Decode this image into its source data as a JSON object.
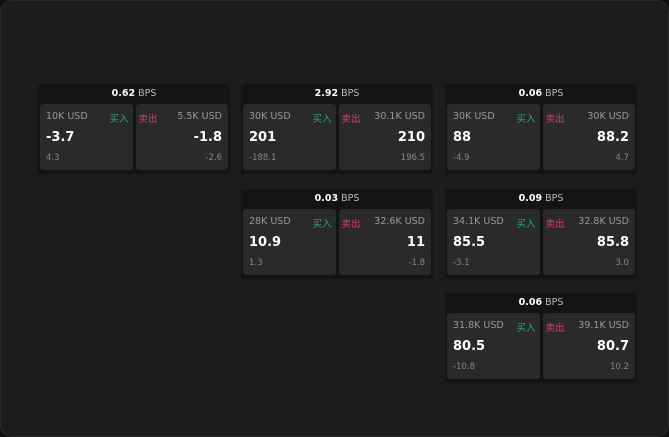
{
  "colors": {
    "buy": "#2fa86b",
    "sell": "#d2436b"
  },
  "cards": [
    {
      "spread": "0.62",
      "unit": "BPS",
      "buy": {
        "amount": "10K USD",
        "label": "买入",
        "price": "-3.7",
        "change": "4.3"
      },
      "sell": {
        "amount": "5.5K USD",
        "label": "卖出",
        "price": "-1.8",
        "change": "-2.6"
      }
    },
    {
      "spread": "2.92",
      "unit": "BPS",
      "buy": {
        "amount": "30K USD",
        "label": "买入",
        "price": "201",
        "change": "-188.1"
      },
      "sell": {
        "amount": "30.1K USD",
        "label": "卖出",
        "price": "210",
        "change": "196.5"
      }
    },
    {
      "spread": "0.06",
      "unit": "BPS",
      "buy": {
        "amount": "30K USD",
        "label": "买入",
        "price": "88",
        "change": "-4.9"
      },
      "sell": {
        "amount": "30K USD",
        "label": "卖出",
        "price": "88.2",
        "change": "4.7"
      }
    },
    {
      "spread": "0.03",
      "unit": "BPS",
      "buy": {
        "amount": "28K USD",
        "label": "买入",
        "price": "10.9",
        "change": "1.3"
      },
      "sell": {
        "amount": "32.6K USD",
        "label": "卖出",
        "price": "11",
        "change": "-1.8"
      }
    },
    {
      "spread": "0.09",
      "unit": "BPS",
      "buy": {
        "amount": "34.1K USD",
        "label": "买入",
        "price": "85.5",
        "change": "-3.1"
      },
      "sell": {
        "amount": "32.8K USD",
        "label": "卖出",
        "price": "85.8",
        "change": "3.0"
      }
    },
    {
      "spread": "0.06",
      "unit": "BPS",
      "buy": {
        "amount": "31.8K USD",
        "label": "买入",
        "price": "80.5",
        "change": "-10.8"
      },
      "sell": {
        "amount": "39.1K USD",
        "label": "卖出",
        "price": "80.7",
        "change": "10.2"
      }
    }
  ]
}
